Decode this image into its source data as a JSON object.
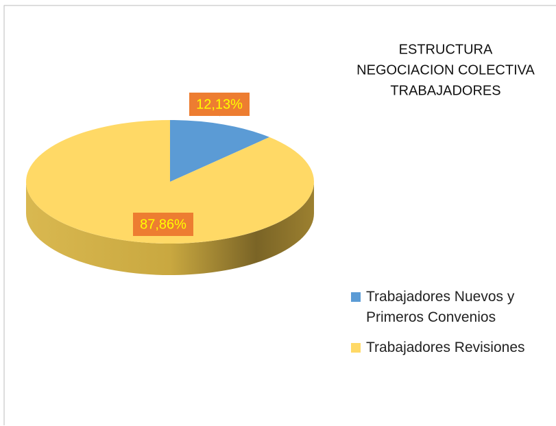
{
  "chart_data": {
    "type": "pie",
    "title": [
      "ESTRUCTURA",
      "NEGOCIACION COLECTIVA",
      "TRABAJADORES"
    ],
    "categories": [
      "Trabajadores Nuevos y Primeros Convenios",
      "Trabajadores Revisiones"
    ],
    "values": [
      12.13,
      87.86
    ],
    "value_labels": [
      "12,13%",
      "87,86%"
    ],
    "colors": [
      "#5b9bd5",
      "#ffd966"
    ],
    "legend": "right"
  }
}
